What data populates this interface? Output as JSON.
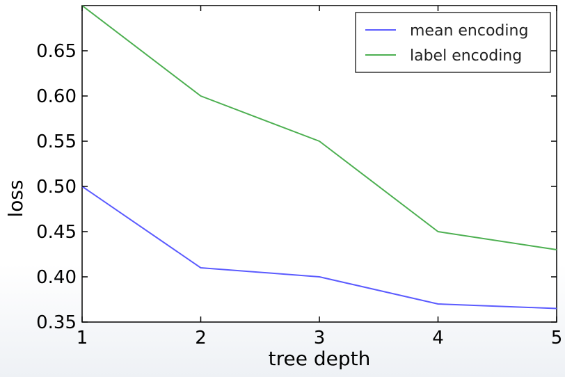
{
  "chart_data": {
    "type": "line",
    "title": "",
    "xlabel": "tree depth",
    "ylabel": "loss",
    "xlim": [
      1,
      5
    ],
    "ylim": [
      0.35,
      0.7
    ],
    "x": [
      1,
      2,
      3,
      4,
      5
    ],
    "x_ticks": [
      "1",
      "2",
      "3",
      "4",
      "5"
    ],
    "y_ticks": [
      "0.35",
      "0.40",
      "0.45",
      "0.50",
      "0.55",
      "0.60",
      "0.65"
    ],
    "grid": false,
    "legend_position": "top-right",
    "series": [
      {
        "name": "mean encoding",
        "color": "#5b5bff",
        "values": [
          0.5,
          0.41,
          0.4,
          0.37,
          0.365
        ]
      },
      {
        "name": "label encoding",
        "color": "#4caf50",
        "values": [
          0.7,
          0.6,
          0.55,
          0.45,
          0.43
        ]
      }
    ]
  }
}
